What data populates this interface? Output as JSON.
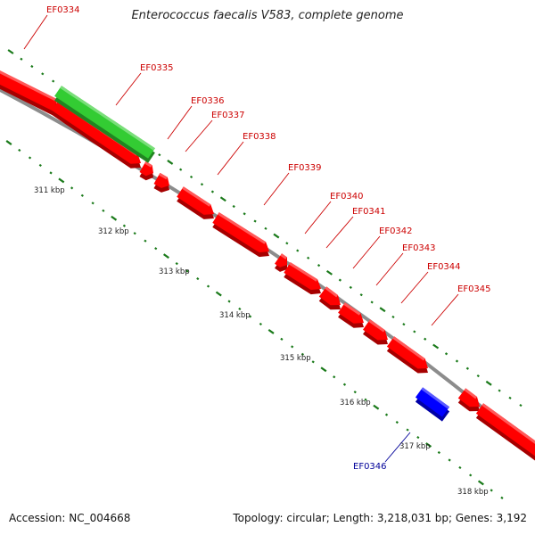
{
  "title": "Enterococcus faecalis V583, complete genome",
  "accession_text": "Accession: NC_004668",
  "topology_text": "Topology: circular; Length: 3,218,031 bp; Genes: 3,192",
  "colors": {
    "forward_gene": "#ff0000",
    "reverse_gene": "#0000ff",
    "highlight_gene": "#33cc33",
    "forward_label": "#cc0000",
    "reverse_label": "#000099",
    "backbone": "#8c8c8c",
    "tick": "#1a7a1a"
  },
  "scale_ticks": [
    {
      "label": "311 kbp"
    },
    {
      "label": "312 kbp"
    },
    {
      "label": "313 kbp"
    },
    {
      "label": "314 kbp"
    },
    {
      "label": "315 kbp"
    },
    {
      "label": "316 kbp"
    },
    {
      "label": "317 kbp"
    },
    {
      "label": "318 kbp"
    }
  ],
  "genes": [
    {
      "id": "EF0334",
      "strand": "forward"
    },
    {
      "id": "EF0335",
      "strand": "forward"
    },
    {
      "id": "EF0336",
      "strand": "forward"
    },
    {
      "id": "EF0337",
      "strand": "forward"
    },
    {
      "id": "EF0338",
      "strand": "forward"
    },
    {
      "id": "EF0339",
      "strand": "forward"
    },
    {
      "id": "EF0340",
      "strand": "forward"
    },
    {
      "id": "EF0341",
      "strand": "forward"
    },
    {
      "id": "EF0342",
      "strand": "forward"
    },
    {
      "id": "EF0343",
      "strand": "forward"
    },
    {
      "id": "EF0344",
      "strand": "forward"
    },
    {
      "id": "EF0345",
      "strand": "forward"
    },
    {
      "id": "EF0346",
      "strand": "reverse"
    }
  ]
}
